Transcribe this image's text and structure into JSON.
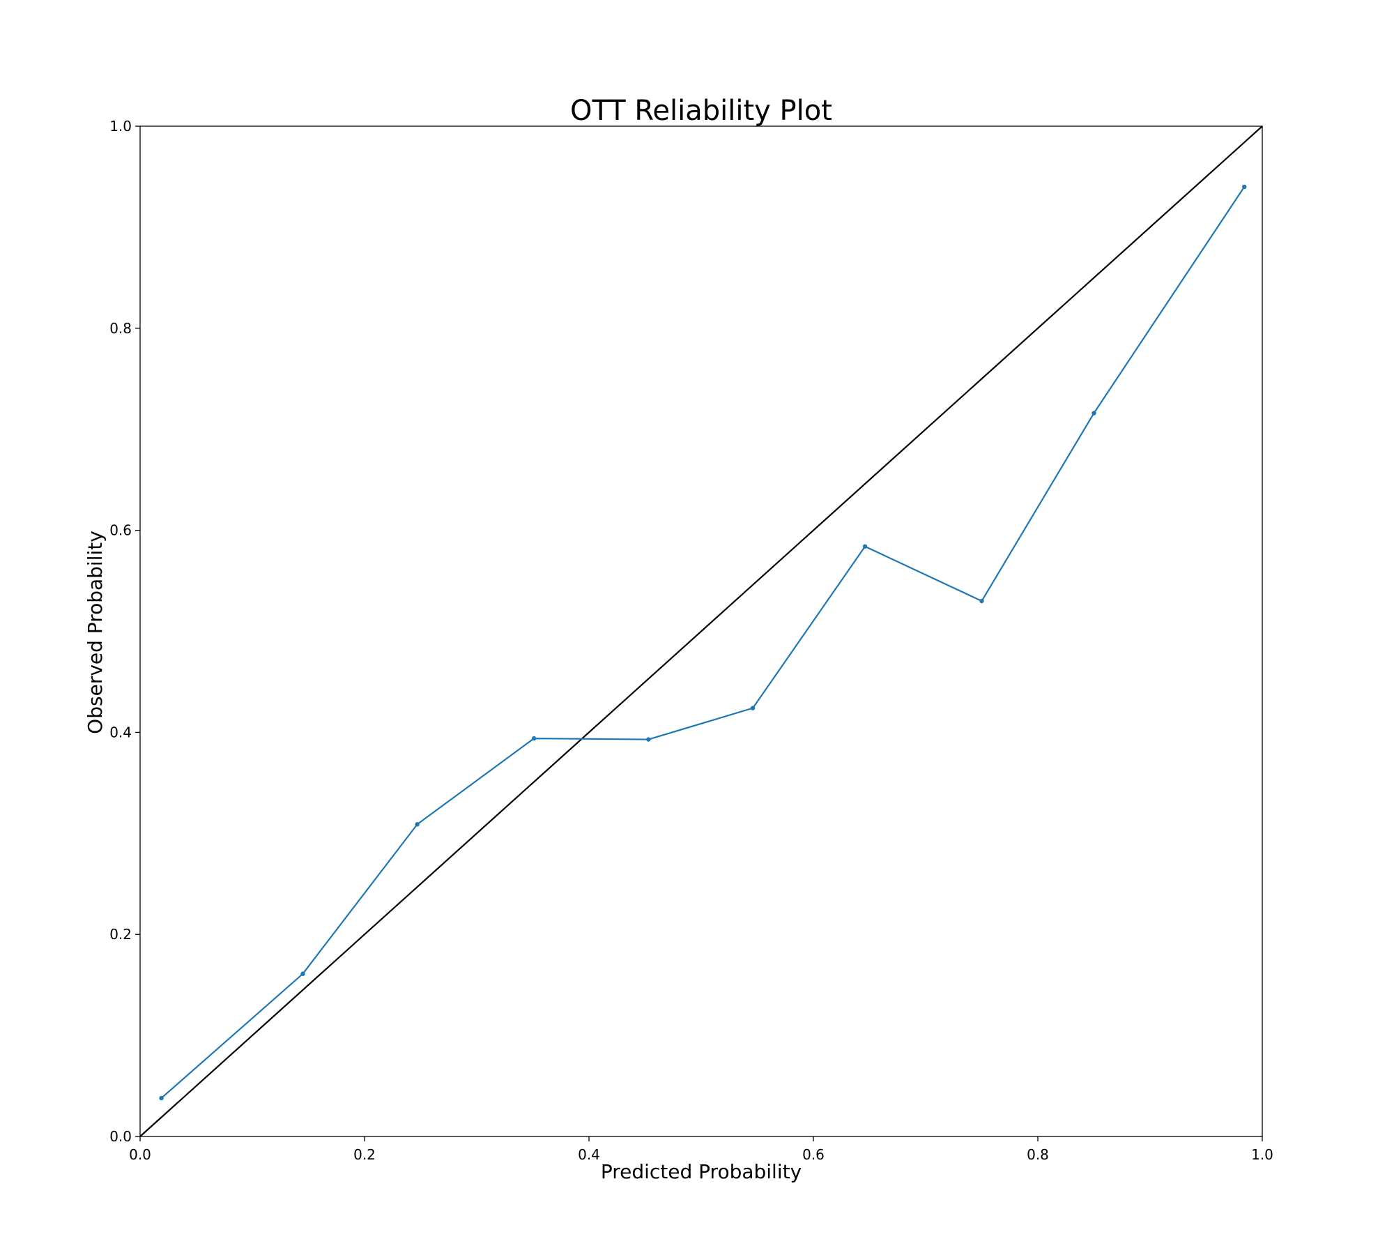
{
  "chart_data": {
    "type": "line",
    "title": "OTT Reliability Plot",
    "xlabel": "Predicted Probability",
    "ylabel": "Observed Probability",
    "xlim": [
      0.0,
      1.0
    ],
    "ylim": [
      0.0,
      1.0
    ],
    "x_ticks": [
      "0.0",
      "0.2",
      "0.4",
      "0.6",
      "0.8",
      "1.0"
    ],
    "y_ticks": [
      "0.0",
      "0.2",
      "0.4",
      "0.6",
      "0.8",
      "1.0"
    ],
    "grid": false,
    "legend": "none",
    "reference_line": {
      "x": [
        0.0,
        1.0
      ],
      "y": [
        0.0,
        1.0
      ],
      "color": "#000000"
    },
    "series": [
      {
        "color": "#1f77b4",
        "marker": "point",
        "x": [
          0.019,
          0.145,
          0.247,
          0.351,
          0.453,
          0.546,
          0.646,
          0.75,
          0.85,
          0.984
        ],
        "y": [
          0.038,
          0.161,
          0.309,
          0.394,
          0.393,
          0.424,
          0.584,
          0.53,
          0.716,
          0.94
        ]
      }
    ]
  }
}
